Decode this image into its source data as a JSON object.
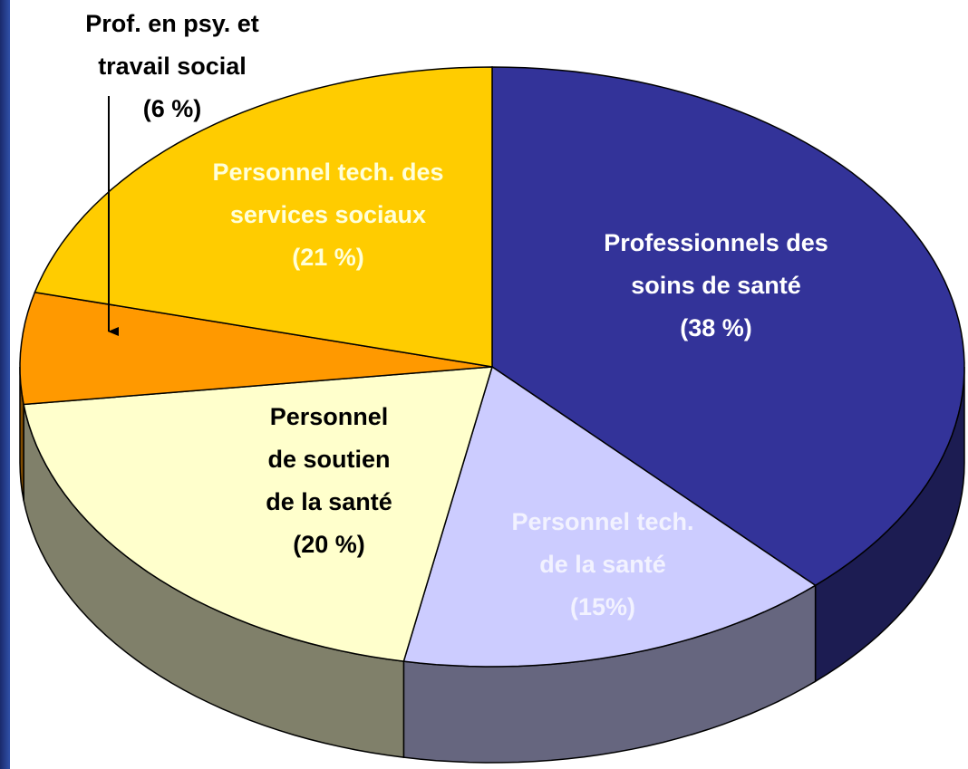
{
  "chart_data": {
    "type": "pie3d",
    "categories": [
      [
        "Professionnels des",
        "soins de santé"
      ],
      [
        "Personnel tech.",
        "de la santé"
      ],
      [
        "Personnel",
        "de soutien",
        "de la santé"
      ],
      [
        "Prof. en psy. et",
        "travail social"
      ],
      [
        "Personnel tech. des",
        "services sociaux"
      ]
    ],
    "values": [
      38,
      15,
      20,
      6,
      21
    ],
    "value_labels": [
      "(38 %)",
      "(15%)",
      "(20 %)",
      "(6 %)",
      "(21 %)"
    ],
    "colors": [
      "#333399",
      "#ccccff",
      "#ffffcc",
      "#ff9900",
      "#ffcc00"
    ],
    "side_colors": [
      "#1c1c52",
      "#66667f",
      "#80806a",
      "#804c00",
      "#806600"
    ],
    "label_colors": [
      "#ffffff",
      "#f2f2ff",
      "#000000",
      "#000000",
      "#ffffd9"
    ]
  }
}
